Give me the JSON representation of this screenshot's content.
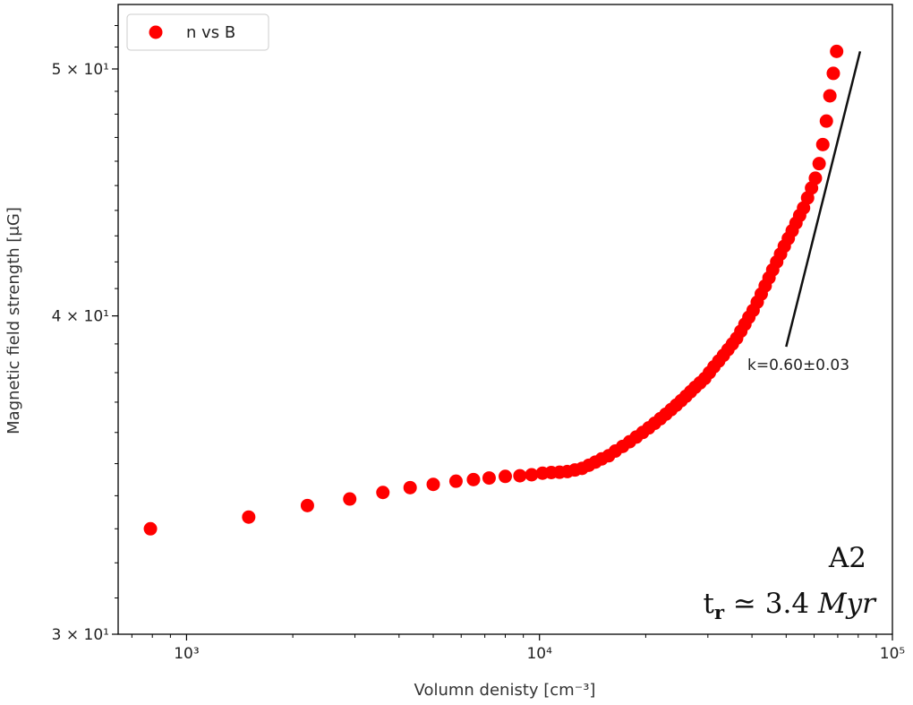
{
  "chart_data": {
    "type": "scatter",
    "title": "",
    "xlabel": "Volumn denisty [cm⁻³]",
    "ylabel": "Magnetic field strength [μG]",
    "xscale": "log",
    "yscale": "log",
    "xlim": [
      640,
      100000
    ],
    "ylim": [
      30,
      53
    ],
    "xticks": [
      {
        "value": 1000,
        "label": "10³"
      },
      {
        "value": 10000,
        "label": "10⁴"
      },
      {
        "value": 100000,
        "label": "10⁵"
      }
    ],
    "yticks": [
      {
        "value": 30,
        "label": "3 × 10¹"
      },
      {
        "value": 40,
        "label": "4 × 10¹"
      },
      {
        "value": 50,
        "label": "5 × 10¹"
      }
    ],
    "grid": false,
    "legend": {
      "position": "top-left",
      "entries": [
        "n vs B"
      ]
    },
    "series": [
      {
        "name": "n vs B",
        "color": "#ff0000",
        "x": [
          790,
          1500,
          2200,
          2900,
          3600,
          4300,
          5000,
          5800,
          6500,
          7200,
          8000,
          8800,
          9500,
          10200,
          10800,
          11400,
          12000,
          12600,
          13200,
          13800,
          14400,
          15000,
          15700,
          16400,
          17200,
          18000,
          18800,
          19600,
          20400,
          21200,
          22000,
          22800,
          23600,
          24400,
          25200,
          26000,
          26800,
          27600,
          28500,
          29400,
          30300,
          31200,
          32200,
          33200,
          34200,
          35200,
          36200,
          37200,
          38200,
          39200,
          40300,
          41400,
          42500,
          43600,
          44700,
          45800,
          47000,
          48200,
          49400,
          50700,
          52000,
          53300,
          54600,
          56000,
          57500,
          59000,
          60500,
          62000,
          63500,
          65000,
          66500,
          68000,
          69500
        ],
        "y": [
          33.0,
          33.35,
          33.7,
          33.9,
          34.1,
          34.25,
          34.35,
          34.45,
          34.5,
          34.55,
          34.6,
          34.62,
          34.65,
          34.7,
          34.72,
          34.73,
          34.75,
          34.8,
          34.85,
          34.95,
          35.05,
          35.15,
          35.25,
          35.4,
          35.55,
          35.7,
          35.85,
          36.0,
          36.15,
          36.3,
          36.45,
          36.6,
          36.75,
          36.9,
          37.05,
          37.2,
          37.35,
          37.5,
          37.65,
          37.8,
          38.0,
          38.2,
          38.4,
          38.6,
          38.8,
          39.0,
          39.2,
          39.45,
          39.7,
          39.95,
          40.2,
          40.5,
          40.8,
          41.1,
          41.4,
          41.7,
          42.0,
          42.3,
          42.6,
          42.9,
          43.2,
          43.5,
          43.8,
          44.1,
          44.5,
          44.9,
          45.3,
          45.9,
          46.7,
          47.7,
          48.8,
          49.8,
          50.8
        ]
      }
    ],
    "fit_line": {
      "x": [
        50000,
        81000
      ],
      "y": [
        38.9,
        50.8
      ],
      "color": "#111111"
    },
    "annotations": {
      "slope": "k=0.60±0.03",
      "panel_id": "A2",
      "time_main": "t",
      "time_sub": "r",
      "time_rest": " ≃ 3.4 ",
      "time_unit": "Myr"
    }
  }
}
